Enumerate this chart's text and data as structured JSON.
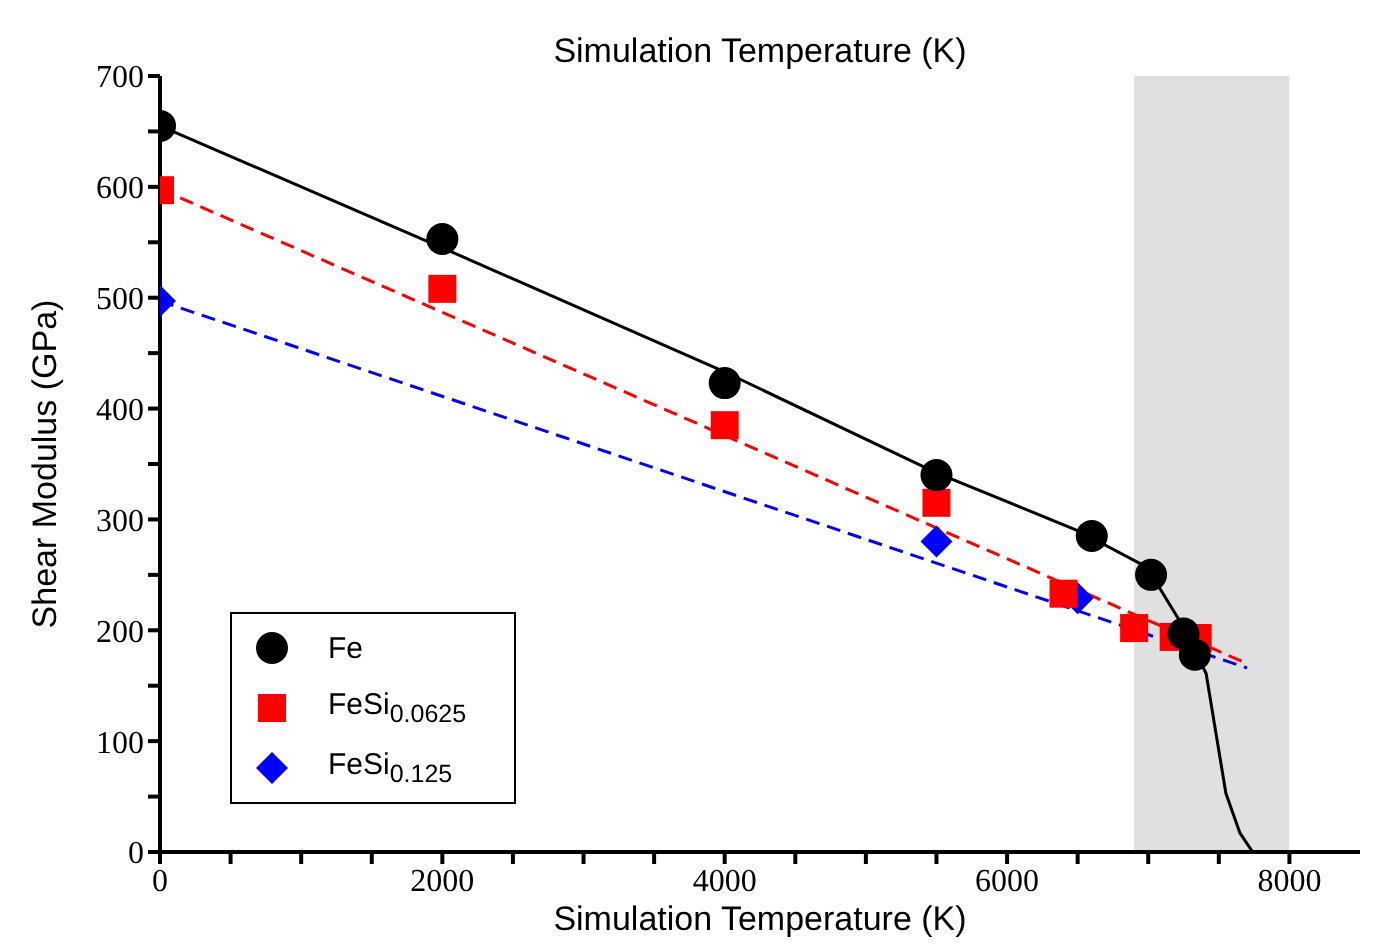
{
  "chart_data": {
    "type": "scatter",
    "title": "Simulation Temperature (K)",
    "xlabel": "Simulation Temperature (K)",
    "ylabel": "Shear Modulus (GPa)",
    "xlim": [
      0,
      8500
    ],
    "ylim": [
      0,
      700
    ],
    "xticks": [
      0,
      {
        "value": 500,
        "label": null
      },
      2000,
      {
        "value": 1000,
        "label": null
      },
      {
        "value": 1500,
        "label": null
      },
      {
        "value": 2500,
        "label": null
      },
      {
        "value": 3000,
        "label": null
      },
      {
        "value": 3500,
        "label": null
      },
      4000,
      {
        "value": 4500,
        "label": null
      },
      {
        "value": 5000,
        "label": null
      },
      {
        "value": 5500,
        "label": null
      },
      6000,
      {
        "value": 6500,
        "label": null
      },
      {
        "value": 7000,
        "label": null
      },
      {
        "value": 7500,
        "label": null
      },
      8000
    ],
    "yticks": [
      0,
      {
        "value": 50,
        "label": null
      },
      100,
      {
        "value": 150,
        "label": null
      },
      200,
      {
        "value": 250,
        "label": null
      },
      300,
      {
        "value": 350,
        "label": null
      },
      400,
      {
        "value": 450,
        "label": null
      },
      500,
      {
        "value": 550,
        "label": null
      },
      600,
      {
        "value": 650,
        "label": null
      },
      700
    ],
    "grid": false,
    "legend": "bottom left",
    "bands": [
      {
        "axis": "x",
        "from": 6900,
        "to": 8000,
        "color": "#cccccc"
      }
    ],
    "series": [
      {
        "type": "line",
        "color": "#000000",
        "line_style": "solid",
        "marker": "none",
        "x": [
          0,
          2000,
          4000,
          5500,
          6500,
          6990,
          7220,
          7410,
          7480,
          7550,
          7650,
          7740
        ],
        "values": [
          655,
          545,
          433,
          342,
          290,
          257,
          209,
          161,
          107,
          53,
          17,
          0
        ]
      },
      {
        "type": "line",
        "color": "#ff0000",
        "line_style": "dashed",
        "marker": "none",
        "x": [
          0,
          7700
        ],
        "values": [
          598,
          170
        ]
      },
      {
        "type": "line",
        "color": "#0000ff",
        "line_style": "dashed",
        "marker": "none",
        "x": [
          0,
          7700
        ],
        "values": [
          497,
          166
        ]
      },
      {
        "name": "Fe",
        "color": "#000000",
        "marker": "circle",
        "x": [
          0,
          2000,
          4000,
          5500,
          6600,
          7020,
          7250,
          7330
        ],
        "values": [
          655,
          553,
          423,
          340,
          285,
          250,
          197,
          178
        ]
      },
      {
        "name": "FeSi$_{0.0625}$",
        "color": "#ff0000",
        "marker": "square",
        "x": [
          0,
          2000,
          4000,
          5500,
          6400,
          6900,
          7180,
          7350
        ],
        "values": [
          597,
          508,
          385,
          315,
          233,
          202,
          194,
          193
        ]
      },
      {
        "name": "FeSi$_{0.125}$",
        "color": "#0000ff",
        "marker": "diamond",
        "x": [
          0,
          5500,
          6500
        ],
        "values": [
          497,
          280,
          229
        ]
      }
    ]
  }
}
